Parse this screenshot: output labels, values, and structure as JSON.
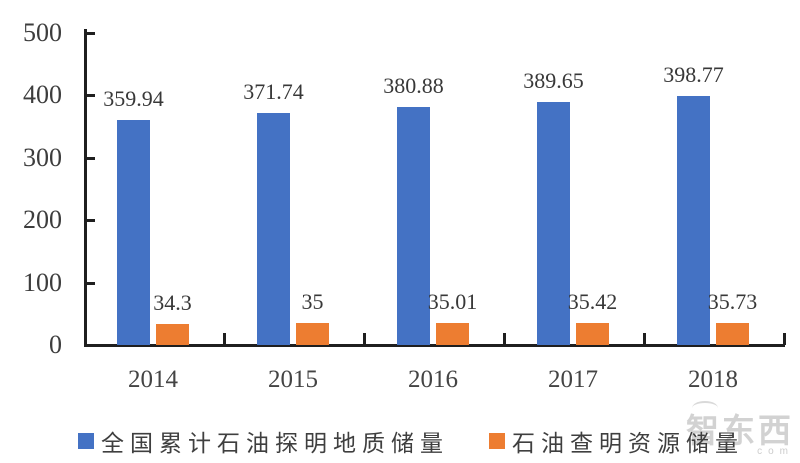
{
  "chart_data": {
    "type": "bar",
    "title": "",
    "xlabel": "",
    "ylabel": "",
    "categories": [
      "2014",
      "2015",
      "2016",
      "2017",
      "2018"
    ],
    "series": [
      {
        "name": "全国累计石油探明地质储量",
        "color": "#4472C4",
        "values": [
          359.94,
          371.74,
          380.88,
          389.65,
          398.77
        ],
        "labels": [
          "359.94",
          "371.74",
          "380.88",
          "389.65",
          "398.77"
        ]
      },
      {
        "name": "石油查明资源储量",
        "color": "#ED7D31",
        "values": [
          34.3,
          35,
          35.01,
          35.42,
          35.73
        ],
        "labels": [
          "34.3",
          "35",
          "35.01",
          "35.42",
          "35.73"
        ]
      }
    ],
    "ylim": [
      0,
      500
    ],
    "yticks": [
      0,
      100,
      200,
      300,
      400,
      500
    ],
    "grid": false,
    "legend_position": "bottom"
  },
  "legend": {
    "items": [
      {
        "label": "全国累计石油探明地质储量",
        "color": "#4472C4"
      },
      {
        "label": "石油查明资源储量",
        "color": "#ED7D31"
      }
    ]
  },
  "watermark": {
    "text": "智东西",
    "subtext": "com"
  }
}
